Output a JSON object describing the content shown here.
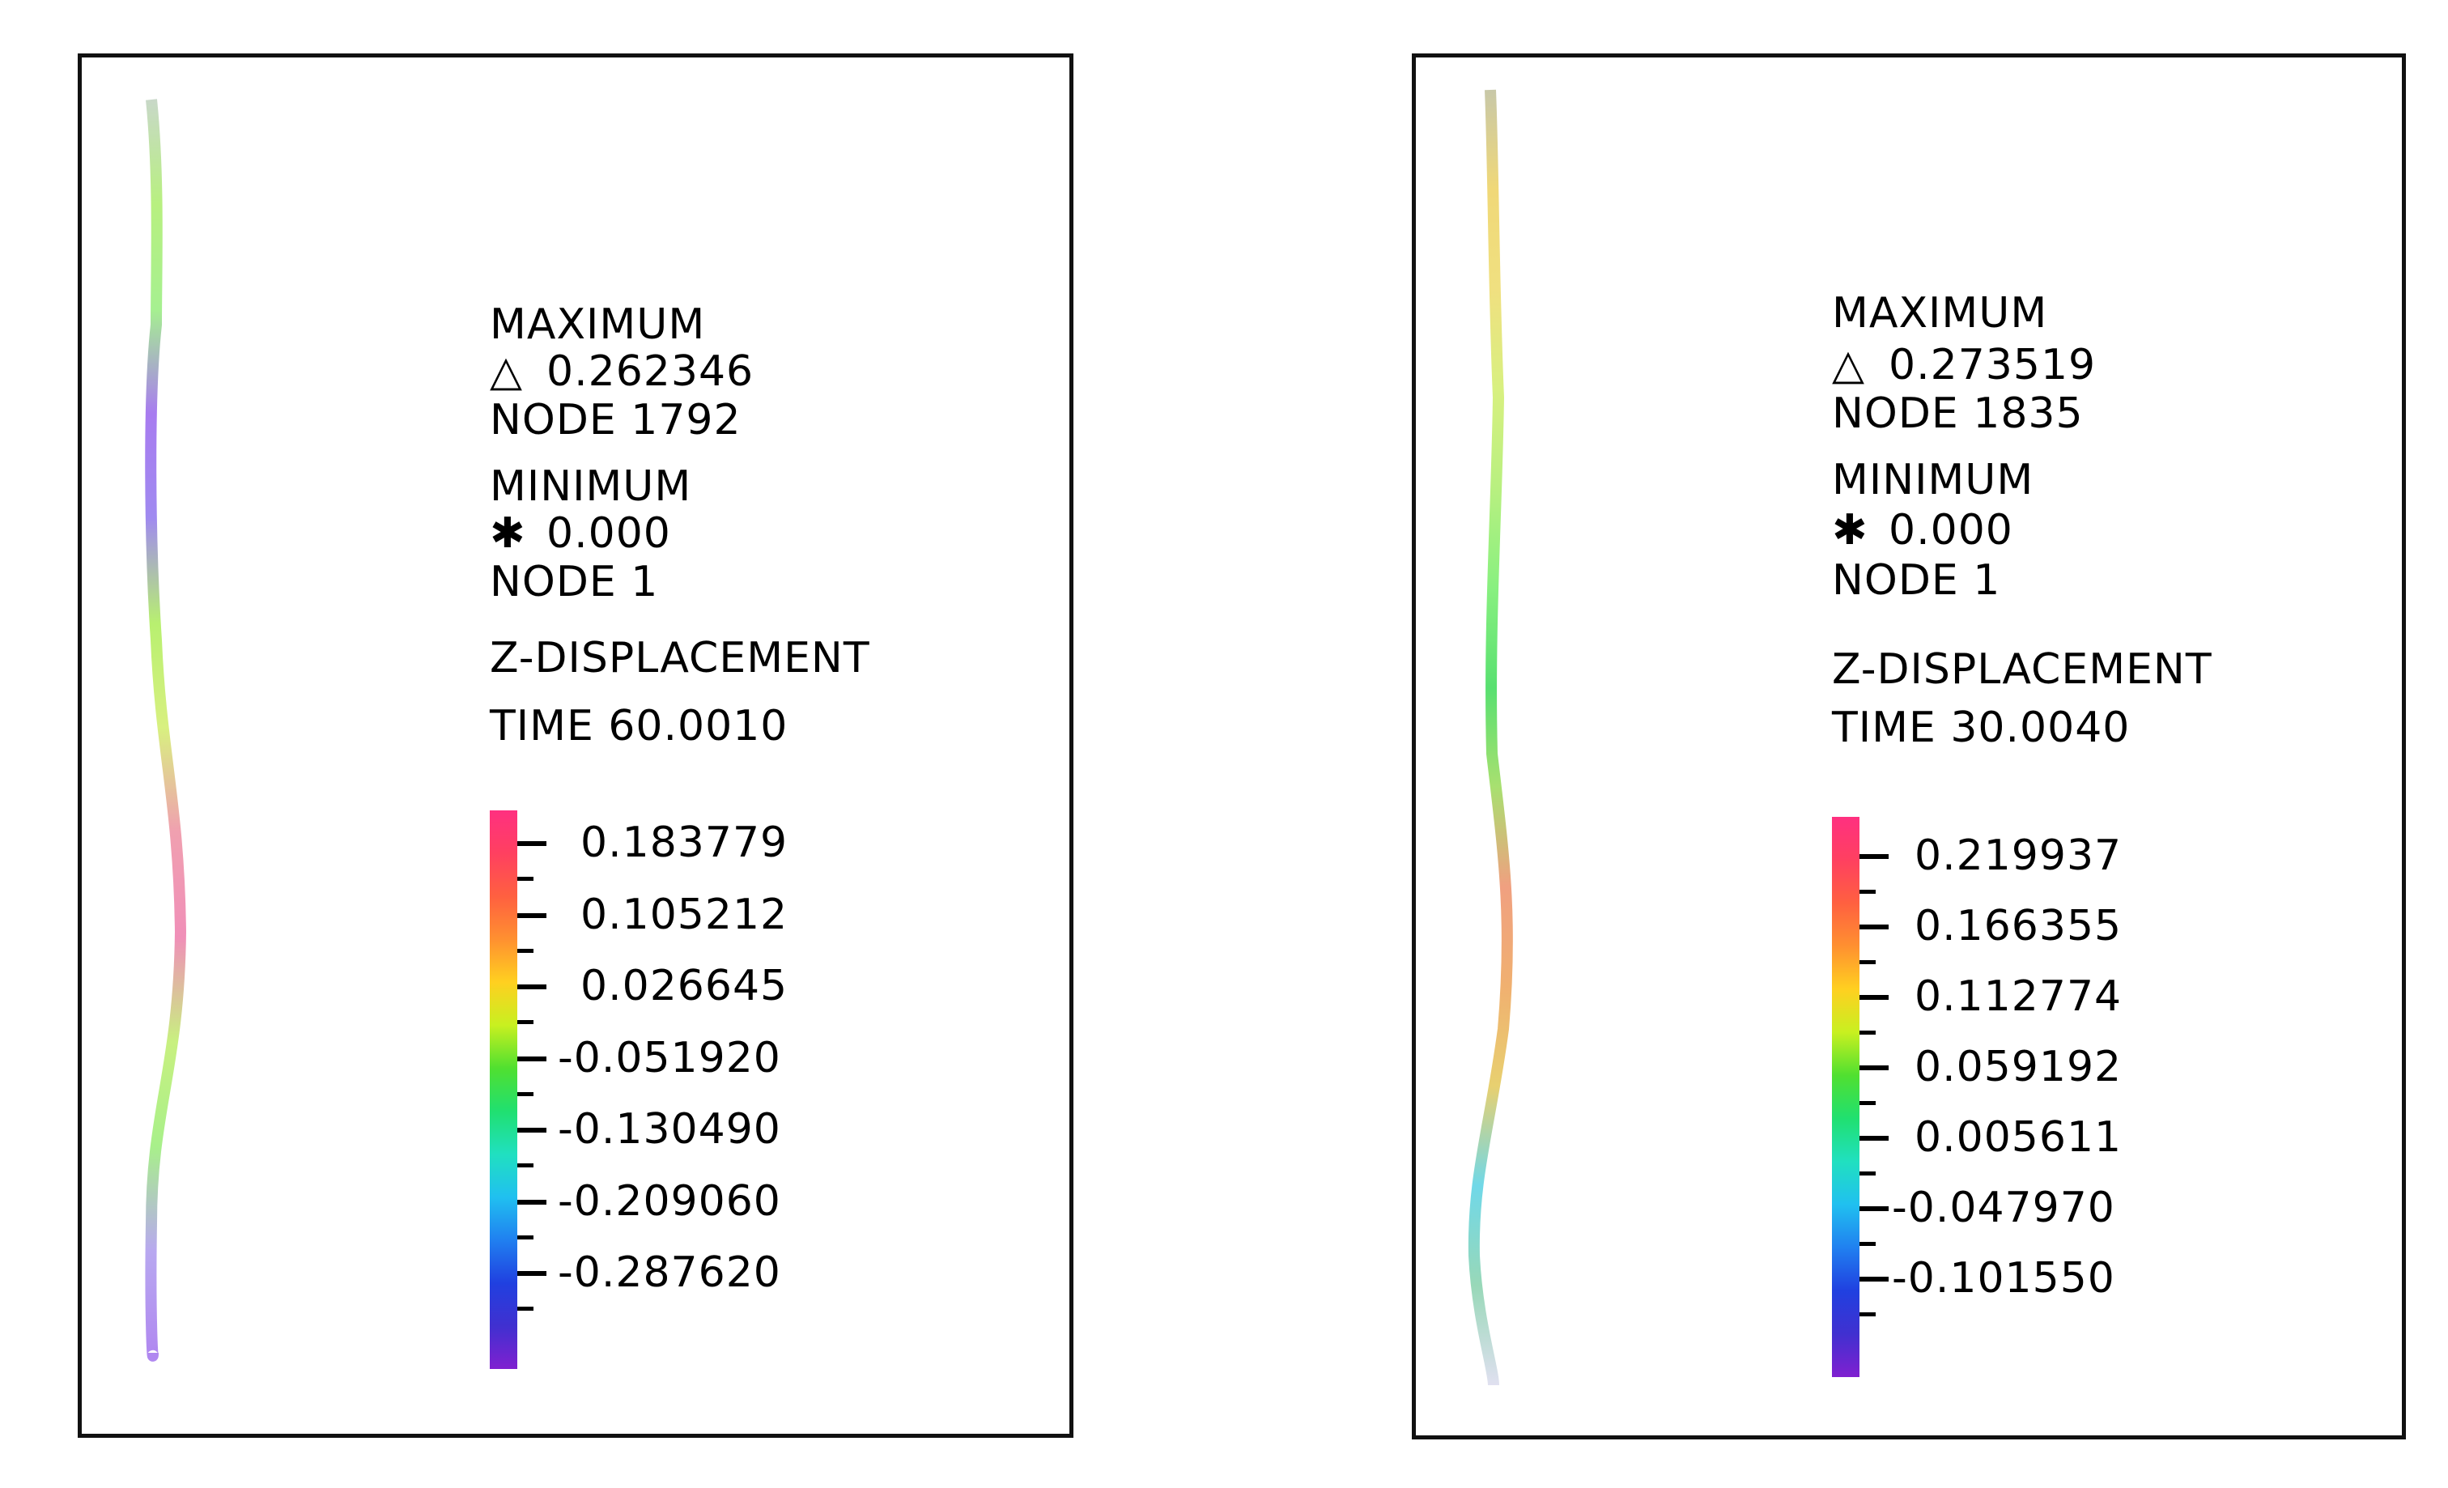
{
  "panels": [
    {
      "id": "left",
      "maximum_label": "MAXIMUM",
      "maximum_symbol": "△",
      "maximum_value": "0.262346",
      "maximum_node": "NODE 1792",
      "minimum_label": "MINIMUM",
      "minimum_symbol": "✱",
      "minimum_value": "0.000",
      "minimum_node": "NODE  1",
      "quantity": "Z-DISPLACEMENT",
      "time": "TIME 60.0010",
      "scale_ticks": [
        "0.183779",
        "0.105212",
        "0.026645",
        "-0.051920",
        "-0.130490",
        "-0.209060",
        "-0.287620"
      ],
      "beam_colors": [
        "#c8d8c8",
        "#b8f080",
        "#a6f090",
        "#a87cf0",
        "#a08af0",
        "#b8f070",
        "#d8f080",
        "#f0a0b0",
        "#f08fb8",
        "#c8f080",
        "#a8f08a",
        "#b8a8f0",
        "#b088f0"
      ]
    },
    {
      "id": "right",
      "maximum_label": "MAXIMUM",
      "maximum_symbol": "△",
      "maximum_value": "0.273519",
      "maximum_node": "NODE 1835",
      "minimum_label": "MINIMUM",
      "minimum_symbol": "✱",
      "minimum_value": "0.000",
      "minimum_node": "NODE  1",
      "quantity": "Z-DISPLACEMENT",
      "time": "TIME 30.0040",
      "scale_ticks": [
        "0.219937",
        "0.166355",
        "0.112774",
        "0.059192",
        "0.005611",
        "-0.047970",
        "-0.101550"
      ],
      "beam_colors": [
        "#c8c8a8",
        "#f0d878",
        "#f0e080",
        "#d8f080",
        "#b8f080",
        "#88f080",
        "#58e070",
        "#a8e070",
        "#f0a080",
        "#f0b070",
        "#e8d070",
        "#70d8e8",
        "#98d8b8",
        "#e0e0f0"
      ]
    }
  ],
  "colorbar_gradient": [
    "#ff3080",
    "#ff4060",
    "#ff6040",
    "#ff9030",
    "#ffd020",
    "#c8f020",
    "#50e030",
    "#20e070",
    "#20e0c0",
    "#20c0f0",
    "#2080f0",
    "#2040e0",
    "#4030d0",
    "#8020d0"
  ]
}
